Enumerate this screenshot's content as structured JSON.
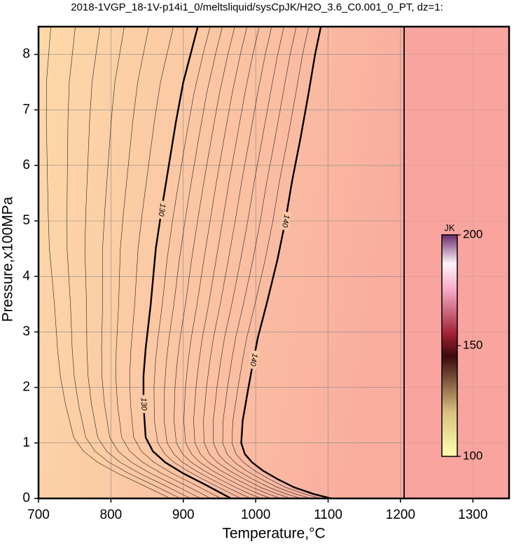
{
  "chart_data": {
    "type": "contour",
    "title": "2018-1VGP_18-1V-p14i1_0/meltsliquid/sysCpJK/H2O_3.6_C0.001_0_PT, dz=1:",
    "x_label": "Temperature,°C",
    "y_label": "Pressure,x100MPa",
    "xlim": [
      700,
      1350
    ],
    "ylim": [
      0,
      8.5
    ],
    "xticks": [
      700,
      800,
      900,
      1000,
      1100,
      1200,
      1300
    ],
    "yticks": [
      0,
      1,
      2,
      3,
      4,
      5,
      6,
      7,
      8
    ],
    "grid": true,
    "contours": [
      {
        "level": 130,
        "color": "#000000",
        "x": [
          920,
          910,
          900,
          890,
          880,
          870,
          862,
          855,
          848,
          845,
          845,
          848,
          858,
          875,
          900,
          930,
          966
        ],
        "y": [
          8.5,
          8,
          7.5,
          6.8,
          6,
          5.2,
          4.5,
          3.5,
          2.7,
          2.2,
          1.7,
          1.1,
          0.85,
          0.65,
          0.45,
          0.25,
          0
        ]
      },
      {
        "level": 140,
        "color": "#000000",
        "x": [
          1090,
          1082,
          1073,
          1062,
          1050,
          1041,
          1030,
          1015,
          1003,
          997,
          990,
          982,
          980,
          985,
          995,
          1010,
          1030,
          1053,
          1080,
          1104
        ],
        "y": [
          8.5,
          8,
          7.3,
          6.5,
          5.7,
          5,
          4.3,
          3.5,
          2.9,
          2.5,
          2,
          1.4,
          1,
          0.8,
          0.65,
          0.5,
          0.35,
          0.2,
          0.08,
          0
        ]
      }
    ],
    "boundary": {
      "x": [
        1205,
        1205
      ],
      "y": [
        0,
        8.5
      ]
    },
    "colorbar": {
      "label": "JK",
      "lim": [
        100,
        200
      ],
      "ticks": [
        100,
        150,
        200
      ]
    }
  }
}
